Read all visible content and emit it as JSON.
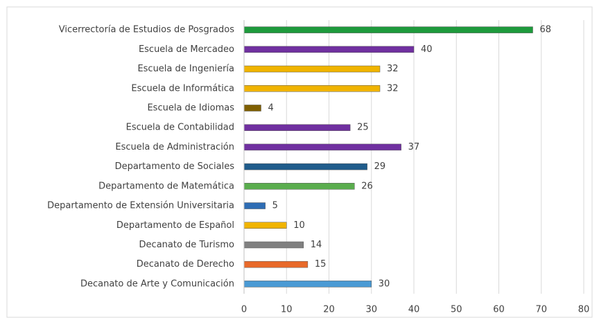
{
  "chart_data": {
    "type": "barh",
    "categories": [
      "Vicerrectoría de Estudios de Posgrados",
      "Escuela de Mercadeo",
      "Escuela de Ingeniería",
      "Escuela de Informática",
      "Escuela de Idiomas",
      "Escuela de Contabilidad",
      "Escuela de Administración",
      "Departamento de Sociales",
      "Departamento de Matemática",
      "Departamento de Extensión Universitaria",
      "Departamento de Español",
      "Decanato de Turismo",
      "Decanato de Derecho",
      "Decanato de Arte y Comunicación"
    ],
    "values": [
      68,
      40,
      32,
      32,
      4,
      25,
      37,
      29,
      26,
      5,
      10,
      14,
      15,
      30
    ],
    "colors": [
      "#1e9a3c",
      "#7030a0",
      "#f0b400",
      "#f0b400",
      "#7f5f00",
      "#7030a0",
      "#7030a0",
      "#1f5c8b",
      "#5aad4e",
      "#2e6db4",
      "#f0b400",
      "#808080",
      "#e86a2a",
      "#4a9ad4"
    ],
    "xlim": [
      0,
      80
    ],
    "xticks": [
      0,
      10,
      20,
      30,
      40,
      50,
      60,
      70,
      80
    ],
    "grid": true
  }
}
